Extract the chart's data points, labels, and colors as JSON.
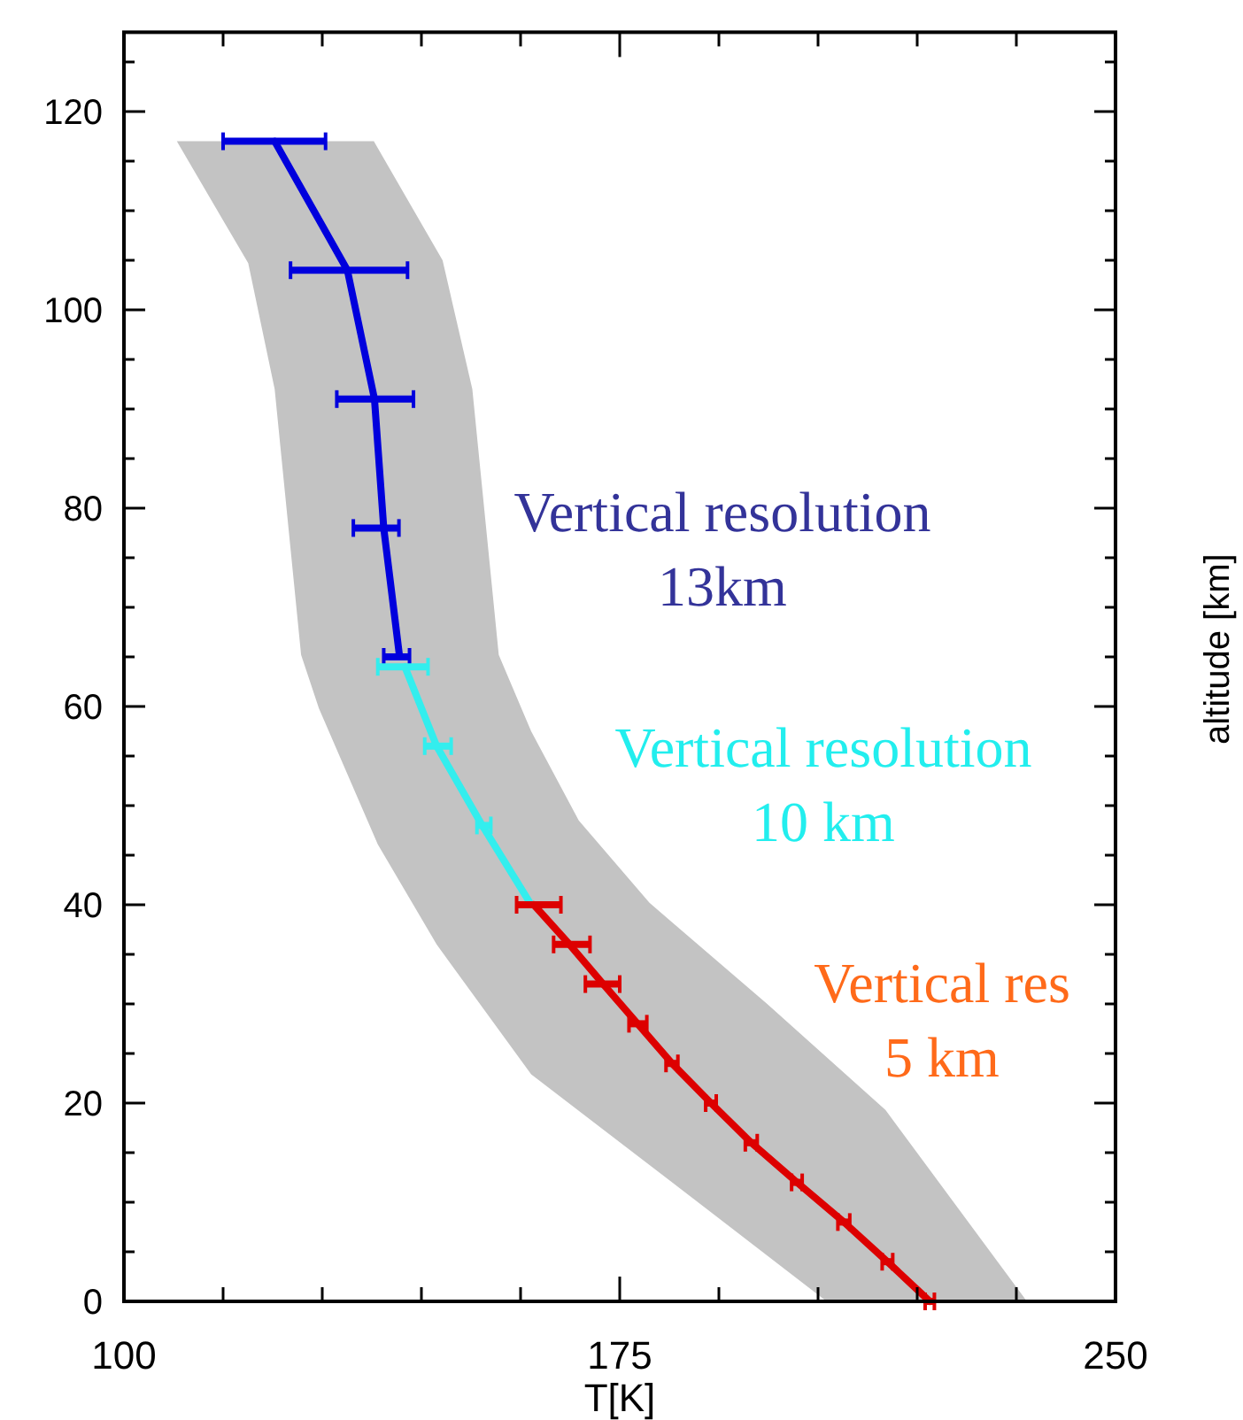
{
  "chart_data": {
    "type": "line",
    "xlabel": "T[K]",
    "ylabel": "altitude [km]",
    "xlim": [
      100,
      250
    ],
    "ylim": [
      0,
      128
    ],
    "xticks": [
      100,
      {
        "value": 115,
        "label": null
      },
      {
        "value": 130,
        "label": null
      },
      {
        "value": 145,
        "label": null
      },
      {
        "value": 160,
        "label": null
      },
      175,
      {
        "value": 190,
        "label": null
      },
      {
        "value": 205,
        "label": null
      },
      {
        "value": 220,
        "label": null
      },
      {
        "value": 235,
        "label": null
      },
      250
    ],
    "yticks": [
      0,
      {
        "value": 5,
        "label": null
      },
      {
        "value": 10,
        "label": null
      },
      {
        "value": 15,
        "label": null
      },
      20,
      {
        "value": 25,
        "label": null
      },
      {
        "value": 30,
        "label": null
      },
      {
        "value": 35,
        "label": null
      },
      40,
      {
        "value": 45,
        "label": null
      },
      {
        "value": 50,
        "label": null
      },
      {
        "value": 55,
        "label": null
      },
      60,
      {
        "value": 65,
        "label": null
      },
      {
        "value": 70,
        "label": null
      },
      {
        "value": 75,
        "label": null
      },
      80,
      {
        "value": 85,
        "label": null
      },
      {
        "value": 90,
        "label": null
      },
      {
        "value": 95,
        "label": null
      },
      100,
      {
        "value": 105,
        "label": null
      },
      {
        "value": 110,
        "label": null
      },
      {
        "value": 115,
        "label": null
      },
      120,
      {
        "value": 125,
        "label": null
      }
    ],
    "grid": false,
    "series": [
      {
        "type": "area",
        "color": "#c3c3c3",
        "x": [
          108,
          118.8,
          122.8,
          126.8,
          129.5,
          138.4,
          147.3,
          161.6,
          188.4,
          206.3,
          236.6,
          215.2,
          197.3,
          179.5,
          168.8,
          161.6,
          156.7,
          152.7,
          148.2,
          137.8
        ],
        "values": [
          117,
          104.7,
          92,
          65.2,
          59.8,
          46.1,
          36,
          22.9,
          9.2,
          0,
          0,
          19.3,
          30,
          40.2,
          48.5,
          57.5,
          65.2,
          92,
          105,
          117
        ]
      },
      {
        "color": "#0000dd",
        "x": [
          122.8,
          133.8,
          137.9,
          139.3,
          141.7
        ],
        "values": [
          117,
          104,
          91,
          78,
          65
        ],
        "xerrors": [
          [
            115,
            130.5
          ],
          [
            125.2,
            142.9
          ],
          [
            132.2,
            143.8
          ],
          [
            134.7,
            141.6
          ],
          [
            139.3,
            143.2
          ]
        ]
      },
      {
        "color": "#33eeee",
        "x": [
          142.5,
          147.3,
          154.2,
          161.6
        ],
        "values": [
          64,
          56,
          48,
          40
        ],
        "xerrors": [
          [
            138.4,
            146
          ],
          [
            145.5,
            149.5
          ],
          [
            153.4,
            155.5
          ],
          null
        ]
      },
      {
        "color": "#dd0000",
        "x": [
          162,
          167.4,
          172.5,
          177.7,
          182.9,
          188.8,
          194.9,
          201.8,
          208.9,
          215.5,
          221.9
        ],
        "values": [
          40,
          36,
          32,
          28,
          24,
          20,
          16,
          12,
          8,
          4,
          0
        ],
        "xerrors": [
          [
            159.4,
            166.1
          ],
          [
            165,
            170.5
          ],
          [
            169.8,
            175
          ],
          [
            176.4,
            179.1
          ],
          [
            182,
            183.8
          ],
          [
            188,
            189.6
          ],
          [
            194,
            195.8
          ],
          [
            201,
            202.6
          ],
          [
            208,
            209.8
          ],
          [
            214.7,
            216.3
          ],
          [
            221.2,
            222.6
          ]
        ]
      }
    ],
    "annotations": [
      "Vertical resolution\n13km",
      "Vertical resolution\n10 km",
      "Vertical res\n5 km"
    ]
  }
}
